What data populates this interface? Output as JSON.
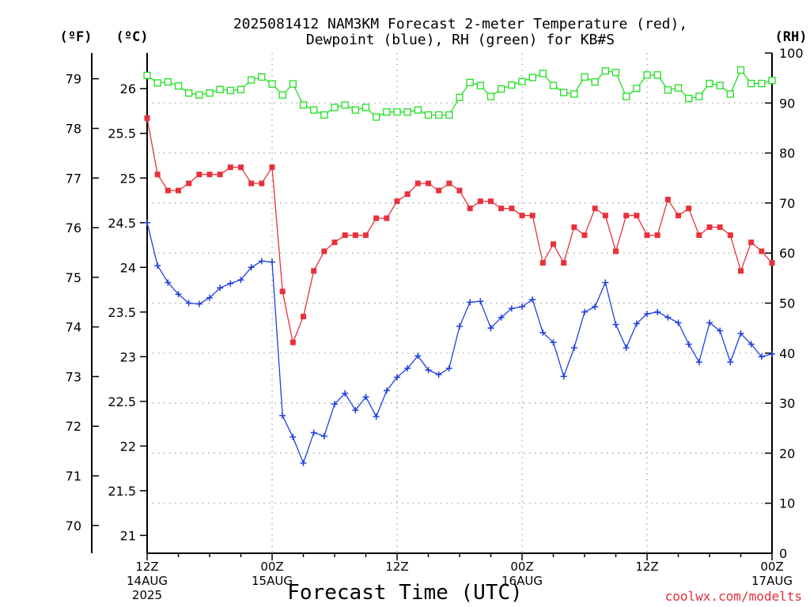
{
  "chart_data": {
    "type": "line",
    "title_line1": "2025081412 NAM3KM Forecast 2-meter Temperature (red),",
    "title_line2": "Dewpoint (blue), RH (green) for KB#S",
    "xlabel": "Forecast Time (UTC)",
    "left_unit_f": "(ºF)",
    "left_unit_c": "(ºC)",
    "right_unit": "(RH)",
    "watermark": "coolwx.com/modelts",
    "x_forecast_hours": [
      0,
      60
    ],
    "x_ticks": [
      {
        "h": 0,
        "lines": [
          "12Z",
          "14AUG",
          "2025"
        ]
      },
      {
        "h": 12,
        "lines": [
          "00Z",
          "15AUG"
        ]
      },
      {
        "h": 24,
        "lines": [
          "12Z"
        ]
      },
      {
        "h": 36,
        "lines": [
          "00Z",
          "16AUG"
        ]
      },
      {
        "h": 48,
        "lines": [
          "12Z"
        ]
      },
      {
        "h": 60,
        "lines": [
          "00Z",
          "17AUG"
        ]
      }
    ],
    "celsius_axis": {
      "range": [
        20.8,
        26.4
      ],
      "ticks": [
        21,
        21.5,
        22,
        22.5,
        23,
        23.5,
        24,
        24.5,
        25,
        25.5,
        26
      ]
    },
    "fahrenheit_axis": {
      "ticks": [
        70,
        71,
        72,
        73,
        74,
        75,
        76,
        77,
        78,
        79
      ]
    },
    "rh_axis": {
      "range": [
        0,
        100
      ],
      "ticks": [
        0,
        10,
        20,
        30,
        40,
        50,
        60,
        70,
        80,
        90,
        100
      ]
    },
    "grid": true,
    "series": [
      {
        "name": "Temperature",
        "color": "#e8313b",
        "units": "C",
        "marker": "filled-square",
        "values": [
          25.67,
          25.04,
          24.86,
          24.86,
          24.94,
          25.04,
          25.04,
          25.04,
          25.12,
          25.12,
          24.94,
          24.94,
          25.12,
          23.73,
          23.16,
          23.45,
          23.96,
          24.18,
          24.28,
          24.36,
          24.36,
          24.36,
          24.55,
          24.55,
          24.74,
          24.82,
          24.94,
          24.94,
          24.86,
          24.94,
          24.86,
          24.66,
          24.74,
          24.74,
          24.66,
          24.66,
          24.58,
          24.58,
          24.05,
          24.26,
          24.05,
          24.45,
          24.36,
          24.66,
          24.58,
          24.18,
          24.58,
          24.58,
          24.36,
          24.36,
          24.76,
          24.58,
          24.66,
          24.36,
          24.45,
          24.45,
          24.36,
          23.96,
          24.28,
          24.18,
          24.05
        ]
      },
      {
        "name": "Dewpoint",
        "color": "#1f3fe0",
        "units": "C",
        "marker": "plus",
        "values": [
          24.5,
          24.02,
          23.83,
          23.7,
          23.6,
          23.59,
          23.66,
          23.77,
          23.82,
          23.86,
          24.0,
          24.07,
          24.06,
          22.34,
          22.1,
          21.81,
          22.15,
          22.11,
          22.47,
          22.59,
          22.4,
          22.55,
          22.33,
          22.62,
          22.77,
          22.87,
          23.01,
          22.85,
          22.8,
          22.87,
          23.34,
          23.61,
          23.62,
          23.32,
          23.44,
          23.54,
          23.56,
          23.64,
          23.27,
          23.16,
          22.78,
          23.1,
          23.5,
          23.56,
          23.83,
          23.36,
          23.1,
          23.37,
          23.48,
          23.5,
          23.44,
          23.38,
          23.14,
          22.94,
          23.38,
          23.29,
          22.94,
          23.26,
          23.14,
          23.0,
          23.03
        ]
      },
      {
        "name": "RH",
        "color": "#1ee01e",
        "units": "%",
        "marker": "open-square",
        "values": [
          95.5,
          94.0,
          94.2,
          93.4,
          92.0,
          91.6,
          92.0,
          92.7,
          92.5,
          92.7,
          94.6,
          95.2,
          93.8,
          91.6,
          93.8,
          89.6,
          88.6,
          87.6,
          89.1,
          89.6,
          88.6,
          89.1,
          87.2,
          88.2,
          88.2,
          88.2,
          88.6,
          87.6,
          87.6,
          87.6,
          91.1,
          94.1,
          93.5,
          91.3,
          92.8,
          93.6,
          94.3,
          95.1,
          95.9,
          93.5,
          92.1,
          91.8,
          95.2,
          94.2,
          96.4,
          96.1,
          91.3,
          92.9,
          95.6,
          95.6,
          92.6,
          93.0,
          90.9,
          91.3,
          93.9,
          93.5,
          91.8,
          96.6,
          93.9,
          93.9,
          94.5
        ]
      }
    ]
  }
}
